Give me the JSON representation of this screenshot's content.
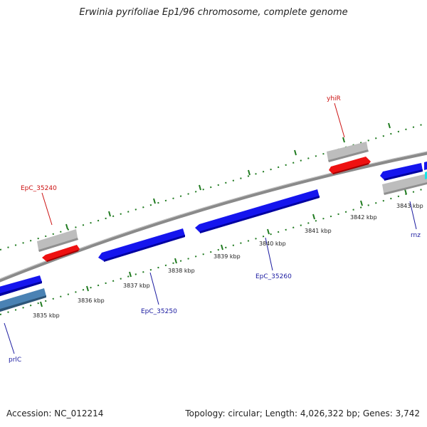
{
  "title": "Erwinia pyrifoliae Ep1/96 chromosome, complete genome",
  "footer": {
    "accession": "Accession: NC_012214",
    "summary": "Topology: circular; Length: 4,026,322 bp; Genes: 3,742"
  },
  "colors": {
    "backbone": "#8a8a8a",
    "tick": "#1f7a1f",
    "forward_gene": "#1515ee",
    "reverse_gene": "#ee1111",
    "pseudo_gene_grey": "#bdbdbd",
    "steel_gene": "#4a82b4",
    "cyan_gene": "#19e6e6",
    "forward_label": "#1a1aa0",
    "reverse_label": "#cc1111"
  },
  "tick_labels": [
    "3835 kbp",
    "3836 kbp",
    "3837 kbp",
    "3838 kbp",
    "3839 kbp",
    "3840 kbp",
    "3841 kbp",
    "3842 kbp",
    "3843 kbp"
  ],
  "gene_labels": [
    {
      "text": "EpC_35240",
      "strand": "reverse"
    },
    {
      "text": "yhiR",
      "strand": "reverse"
    },
    {
      "text": "EpC_35250",
      "strand": "forward"
    },
    {
      "text": "EpC_35260",
      "strand": "forward"
    },
    {
      "text": "prlC",
      "strand": "forward"
    },
    {
      "text": "rnz",
      "strand": "forward"
    }
  ]
}
